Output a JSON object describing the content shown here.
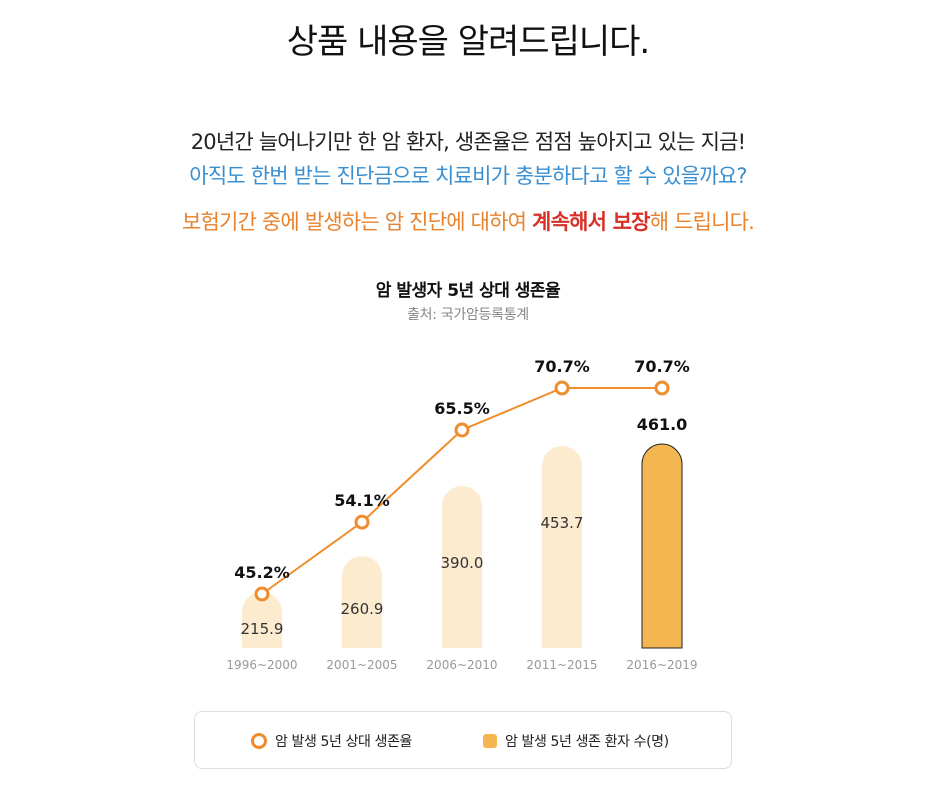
{
  "header": {
    "title": "상품 내용을 알려드립니다."
  },
  "intro": {
    "line1": "20년간 늘어나기만 한 암 환자, 생존율은 점점 높아지고 있는 지금!",
    "line2": "아직도 한번 받는 진단금으로 치료비가 충분하다고 할 수 있을까요?",
    "line3_prefix": "보험기간 중에 발생하는 암 진단에 대하여 ",
    "line3_emphasis": "계속해서 보장",
    "line3_suffix": "해 드립니다."
  },
  "legend": {
    "rate_label": "암 발생 5년 상대 생존율",
    "count_label": "암 발생 5년 생존 환자 수(명)"
  },
  "colors": {
    "line": "#ef8d2c",
    "bar_light": "#fdebd0",
    "bar_highlight": "#f4b651",
    "blue_text": "#3a8fd0",
    "orange_text": "#e8822c",
    "red_emphasis": "#d63027"
  },
  "chart_data": {
    "type": "bar+line",
    "title": "암 발생자 5년 상대 생존율",
    "subtitle": "출처: 국가암등록통계",
    "categories": [
      "1996~2000",
      "2001~2005",
      "2006~2010",
      "2011~2015",
      "2016~2019"
    ],
    "series": [
      {
        "name": "암 발생 5년 생존 환자 수(명)",
        "type": "bar",
        "values": [
          215.9,
          260.9,
          390.0,
          453.7,
          461.0
        ],
        "labels": [
          "215.9",
          "260.9",
          "390.0",
          "453.7",
          "461.0"
        ],
        "highlight_index": 4
      },
      {
        "name": "암 발생 5년 상대 생존율",
        "type": "line",
        "values": [
          45.2,
          54.1,
          65.5,
          70.7,
          70.7
        ],
        "labels": [
          "45.2%",
          "54.1%",
          "65.5%",
          "70.7%",
          "70.7%"
        ]
      }
    ],
    "grid": false,
    "legend_position": "bottom"
  }
}
